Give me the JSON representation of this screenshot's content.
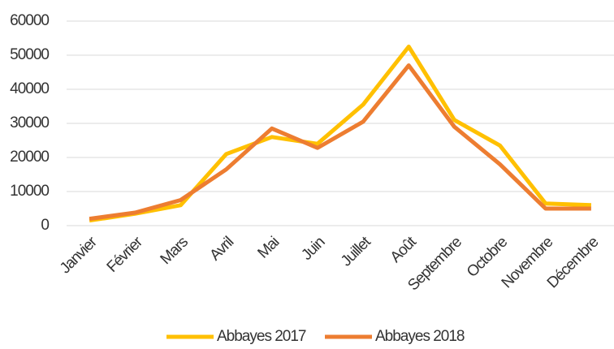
{
  "chart_data": {
    "type": "line",
    "categories": [
      "Janvier",
      "Février",
      "Mars",
      "Avril",
      "Mai",
      "Juin",
      "Juillet",
      "Août",
      "Septembre",
      "Octobre",
      "Novembre",
      "Décembre"
    ],
    "series": [
      {
        "name": "Abbayes 2017",
        "color": "#FFC000",
        "values": [
          1500,
          3500,
          6000,
          21000,
          26000,
          24000,
          35500,
          52500,
          31000,
          23500,
          6500,
          6000
        ]
      },
      {
        "name": "Abbayes 2018",
        "color": "#ED7D31",
        "values": [
          2000,
          3800,
          7500,
          16500,
          28500,
          22800,
          30500,
          47000,
          29000,
          18000,
          5000,
          5000
        ]
      }
    ],
    "ylim": [
      0,
      60000
    ],
    "yticks": [
      0,
      10000,
      20000,
      30000,
      40000,
      50000,
      60000
    ],
    "grid": true,
    "legend": "bottom"
  }
}
